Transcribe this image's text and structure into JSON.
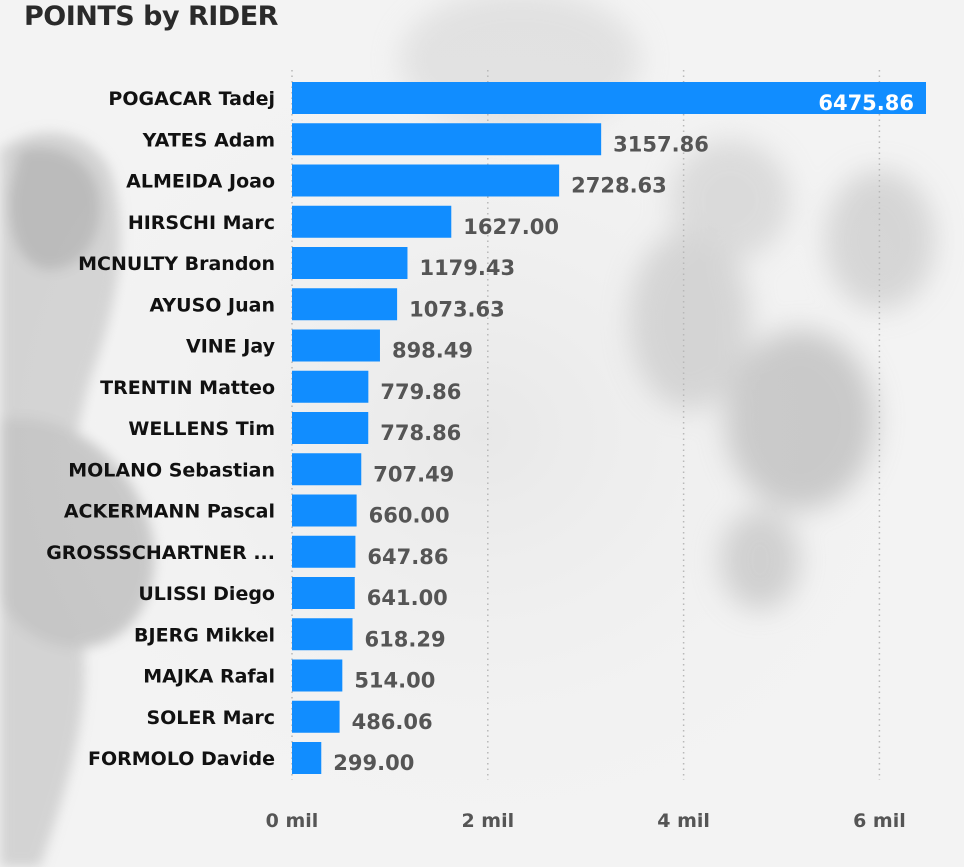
{
  "chart_data": {
    "type": "bar",
    "orientation": "horizontal",
    "title": "POINTS by RIDER",
    "categories": [
      "POGACAR Tadej",
      "YATES Adam",
      "ALMEIDA Joao",
      "HIRSCHI Marc",
      "MCNULTY Brandon",
      "AYUSO Juan",
      "VINE Jay",
      "TRENTIN Matteo",
      "WELLENS Tim",
      "MOLANO Sebastian",
      "ACKERMANN Pascal",
      "GROSSSCHARTNER ...",
      "ULISSI Diego",
      "BJERG Mikkel",
      "MAJKA Rafal",
      "SOLER Marc",
      "FORMOLO Davide"
    ],
    "values": [
      6475.86,
      3157.86,
      2728.63,
      1627.0,
      1179.43,
      1073.63,
      898.49,
      779.86,
      778.86,
      707.49,
      660.0,
      647.86,
      641.0,
      618.29,
      514.0,
      486.06,
      299.0
    ],
    "value_labels": [
      "6475.86",
      "3157.86",
      "2728.63",
      "1627.00",
      "1179.43",
      "1073.63",
      "898.49",
      "779.86",
      "778.86",
      "707.49",
      "660.00",
      "647.86",
      "641.00",
      "618.29",
      "514.00",
      "486.06",
      "299.00"
    ],
    "xlim": [
      0,
      6500
    ],
    "xticks": [
      0,
      2000,
      4000,
      6000
    ],
    "xtick_labels": [
      "0 mil",
      "2 mil",
      "4 mil",
      "6 mil"
    ],
    "grid": true,
    "bar_color": "#118dff",
    "label_color": "#555555"
  }
}
